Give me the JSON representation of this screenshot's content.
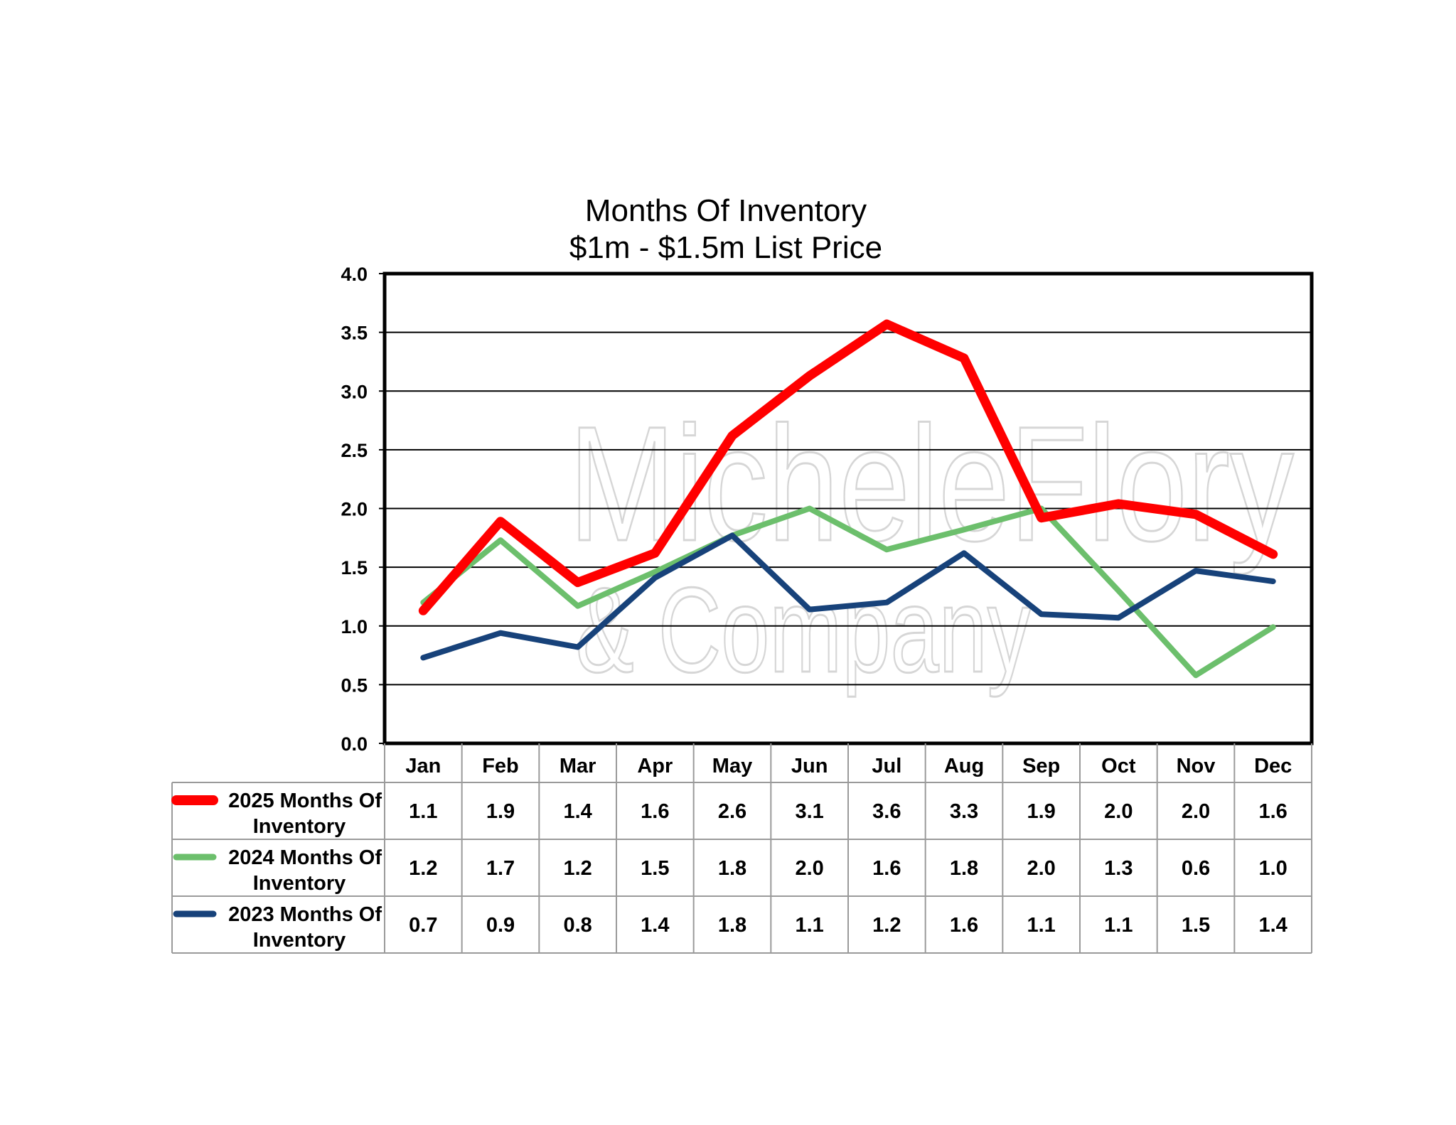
{
  "watermark": {
    "line1": "MicheleFlory",
    "line2": "& Company"
  },
  "chart_data": {
    "type": "line",
    "title": [
      "Months Of Inventory",
      "$1m - $1.5m List Price"
    ],
    "xlabel": "",
    "ylabel": "",
    "ylim": [
      0,
      4.0
    ],
    "yticks": [
      "0.0",
      "0.5",
      "1.0",
      "1.5",
      "2.0",
      "2.5",
      "3.0",
      "3.5",
      "4.0"
    ],
    "grid": true,
    "categories": [
      "Jan",
      "Feb",
      "Mar",
      "Apr",
      "May",
      "Jun",
      "Jul",
      "Aug",
      "Sep",
      "Oct",
      "Nov",
      "Dec"
    ],
    "series": [
      {
        "name_line1": "2025 Months Of",
        "name_line2": "Inventory",
        "color": "#ff0000",
        "values": [
          1.13,
          1.89,
          1.37,
          1.62,
          2.62,
          3.13,
          3.57,
          3.28,
          1.92,
          2.04,
          1.95,
          1.61
        ],
        "labels": [
          "1.1",
          "1.9",
          "1.4",
          "1.6",
          "2.6",
          "3.1",
          "3.6",
          "3.3",
          "1.9",
          "2.0",
          "2.0",
          "1.6"
        ]
      },
      {
        "name_line1": "2024 Months Of",
        "name_line2": "Inventory",
        "color": "#6cbf6c",
        "values": [
          1.2,
          1.73,
          1.17,
          1.46,
          1.77,
          2.0,
          1.65,
          1.82,
          2.0,
          1.3,
          0.58,
          0.99
        ],
        "labels": [
          "1.2",
          "1.7",
          "1.2",
          "1.5",
          "1.8",
          "2.0",
          "1.6",
          "1.8",
          "2.0",
          "1.3",
          "0.6",
          "1.0"
        ]
      },
      {
        "name_line1": "2023 Months Of",
        "name_line2": "Inventory",
        "color": "#17427a",
        "values": [
          0.73,
          0.94,
          0.82,
          1.41,
          1.77,
          1.14,
          1.2,
          1.62,
          1.1,
          1.07,
          1.47,
          1.38
        ],
        "labels": [
          "0.7",
          "0.9",
          "0.8",
          "1.4",
          "1.8",
          "1.1",
          "1.2",
          "1.6",
          "1.1",
          "1.1",
          "1.5",
          "1.4"
        ]
      }
    ]
  }
}
